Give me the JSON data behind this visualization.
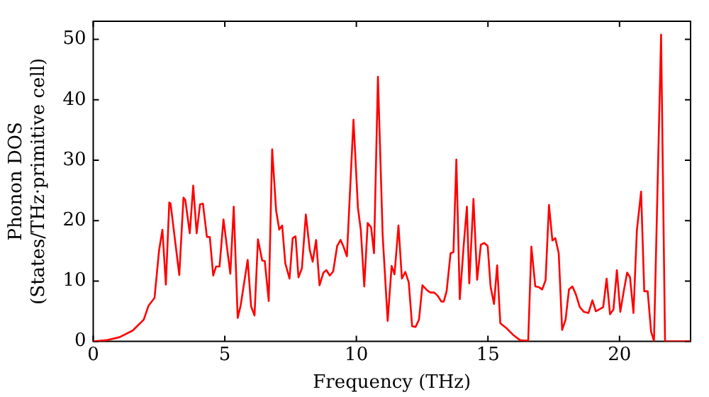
{
  "chart_data": {
    "type": "line",
    "xlabel": "Frequency (THz)",
    "ylabel": "Phonon DOS\n(States/THz·primitive cell)",
    "xlim": [
      0,
      22.7
    ],
    "ylim": [
      0,
      53
    ],
    "xticks": [
      0,
      5,
      10,
      15,
      20
    ],
    "yticks": [
      0,
      10,
      20,
      30,
      40,
      50
    ],
    "series": [
      {
        "color": "#ff0000",
        "x": [
          0,
          0.5,
          1,
          1.5,
          1.92,
          2.1,
          2.33,
          2.5,
          2.63,
          2.76,
          2.89,
          2.94,
          3.27,
          3.43,
          3.5,
          3.67,
          3.8,
          3.93,
          4.06,
          4.17,
          4.32,
          4.43,
          4.56,
          4.67,
          4.8,
          4.95,
          5.21,
          5.34,
          5.49,
          5.6,
          5.87,
          6.0,
          6.13,
          6.26,
          6.42,
          6.52,
          6.67,
          6.8,
          6.95,
          7.07,
          7.18,
          7.3,
          7.46,
          7.58,
          7.69,
          7.8,
          7.93,
          8.08,
          8.23,
          8.34,
          8.47,
          8.6,
          8.75,
          8.86,
          8.99,
          9.12,
          9.27,
          9.4,
          9.51,
          9.64,
          9.89,
          10.06,
          10.17,
          10.3,
          10.43,
          10.56,
          10.67,
          10.82,
          11.0,
          11.19,
          11.34,
          11.45,
          11.6,
          11.73,
          11.86,
          11.99,
          12.12,
          12.25,
          12.38,
          12.51,
          12.68,
          12.81,
          12.96,
          13.1,
          13.23,
          13.32,
          13.43,
          13.58,
          13.69,
          13.8,
          13.93,
          14.08,
          14.2,
          14.29,
          14.45,
          14.59,
          14.73,
          14.86,
          14.99,
          15.1,
          15.23,
          15.35,
          15.47,
          15.7,
          15.98,
          16.22,
          16.53,
          16.65,
          16.8,
          16.93,
          17.06,
          17.19,
          17.32,
          17.45,
          17.56,
          17.69,
          17.82,
          17.95,
          18.08,
          18.21,
          18.34,
          18.49,
          18.64,
          18.82,
          18.97,
          19.1,
          19.27,
          19.38,
          19.51,
          19.64,
          19.77,
          19.9,
          20.03,
          20.16,
          20.29,
          20.4,
          20.53,
          20.66,
          20.82,
          20.94,
          21.07,
          21.2,
          21.31,
          21.58,
          21.73,
          22.7
        ],
        "values": [
          0,
          0.2,
          0.7,
          1.8,
          3.6,
          5.9,
          7.2,
          15,
          18.5,
          9.4,
          23,
          22.8,
          11,
          23.8,
          23.4,
          17.9,
          25.8,
          17.9,
          22.7,
          22.8,
          17.3,
          17.3,
          10.9,
          12.4,
          12.4,
          20.2,
          11.2,
          22.3,
          3.9,
          5.9,
          13.5,
          5.8,
          4.3,
          16.9,
          13.4,
          13.3,
          6.7,
          31.8,
          21.7,
          18.5,
          19.2,
          12.9,
          10.4,
          17.1,
          17.4,
          10.6,
          12.1,
          21,
          15.1,
          13.2,
          16.8,
          9.3,
          11.4,
          11.8,
          10.9,
          11.6,
          15.8,
          16.8,
          15.7,
          14.1,
          36.7,
          22.1,
          18.4,
          9.1,
          19.6,
          18.9,
          14.6,
          43.8,
          17.5,
          3.4,
          12.5,
          11.1,
          19.2,
          10.4,
          11.5,
          9.8,
          2.5,
          2.4,
          3.6,
          9.3,
          8.5,
          8.1,
          8.1,
          7.5,
          6.6,
          6.6,
          8.3,
          14.6,
          14.8,
          30.1,
          7,
          16,
          22.3,
          9.6,
          23.6,
          10.2,
          16,
          16.3,
          15.8,
          9.1,
          6.2,
          12.6,
          3,
          2.2,
          1,
          0.2,
          0.1,
          15.7,
          9.1,
          9,
          8.6,
          10.1,
          22.6,
          16.7,
          17.1,
          14.6,
          1.9,
          3.6,
          8.6,
          9.1,
          7.8,
          5.7,
          4.9,
          4.7,
          6.8,
          5,
          5.4,
          5.7,
          10.4,
          4.5,
          5.3,
          11.8,
          4.9,
          8.3,
          11.4,
          10.6,
          4.7,
          18.4,
          24.8,
          8.3,
          8.3,
          1.6,
          0.1,
          50.8,
          0,
          0
        ]
      }
    ]
  }
}
